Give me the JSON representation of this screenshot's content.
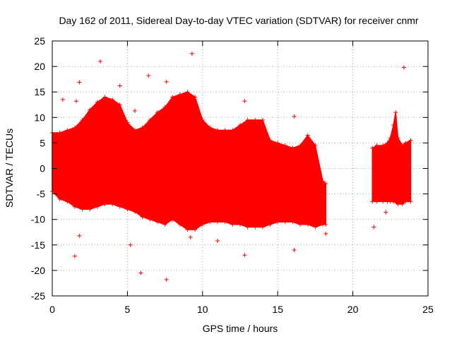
{
  "chart_data": {
    "type": "scatter",
    "title": "Day 162 of 2011, Sidereal Day-to-day VTEC variation (SDTVAR) for receiver cnmr",
    "xlabel": "GPS time / hours",
    "ylabel": "SDTVAR / TECUs",
    "xlim": [
      0,
      25
    ],
    "ylim": [
      -25,
      25
    ],
    "xticks": [
      "0",
      "5",
      "10",
      "15",
      "20",
      "25"
    ],
    "yticks": [
      "25",
      "20",
      "15",
      "10",
      "5",
      "0",
      "-5",
      "-10",
      "-15",
      "-20",
      "-25"
    ],
    "grid": true,
    "marker": "+",
    "color": "#ff0000",
    "series": [
      {
        "name": "SDTVAR",
        "upper_envelope": [
          [
            0.0,
            7.0
          ],
          [
            0.5,
            7.0
          ],
          [
            1.0,
            7.5
          ],
          [
            1.5,
            8.0
          ],
          [
            2.0,
            9.5
          ],
          [
            2.5,
            11.5
          ],
          [
            3.0,
            13.0
          ],
          [
            3.5,
            14.0
          ],
          [
            4.0,
            13.5
          ],
          [
            4.5,
            12.5
          ],
          [
            5.0,
            9.0
          ],
          [
            5.5,
            7.5
          ],
          [
            6.0,
            8.0
          ],
          [
            6.5,
            9.5
          ],
          [
            7.0,
            11.0
          ],
          [
            7.5,
            12.0
          ],
          [
            8.0,
            14.0
          ],
          [
            8.5,
            14.5
          ],
          [
            9.0,
            15.0
          ],
          [
            9.5,
            14.0
          ],
          [
            10.0,
            9.5
          ],
          [
            10.5,
            8.0
          ],
          [
            11.0,
            7.5
          ],
          [
            11.5,
            7.5
          ],
          [
            12.0,
            7.5
          ],
          [
            12.5,
            8.5
          ],
          [
            13.0,
            9.5
          ],
          [
            13.5,
            9.5
          ],
          [
            14.0,
            9.5
          ],
          [
            14.5,
            5.5
          ],
          [
            15.0,
            5.0
          ],
          [
            15.5,
            4.5
          ],
          [
            16.0,
            4.0
          ],
          [
            16.5,
            4.5
          ],
          [
            17.0,
            6.5
          ],
          [
            17.5,
            4.5
          ],
          [
            18.0,
            -2.5
          ],
          [
            18.2,
            -3.0
          ]
        ],
        "lower_envelope": [
          [
            0.0,
            -4.5
          ],
          [
            0.5,
            -6.0
          ],
          [
            1.0,
            -6.5
          ],
          [
            1.5,
            -7.5
          ],
          [
            2.0,
            -8.0
          ],
          [
            2.5,
            -8.0
          ],
          [
            3.0,
            -7.5
          ],
          [
            3.5,
            -7.0
          ],
          [
            4.0,
            -7.0
          ],
          [
            4.5,
            -7.5
          ],
          [
            5.0,
            -8.0
          ],
          [
            5.5,
            -8.5
          ],
          [
            6.0,
            -9.5
          ],
          [
            6.5,
            -10.0
          ],
          [
            7.0,
            -10.5
          ],
          [
            7.5,
            -11.0
          ],
          [
            8.0,
            -10.0
          ],
          [
            8.5,
            -11.0
          ],
          [
            9.0,
            -12.0
          ],
          [
            9.5,
            -12.0
          ],
          [
            10.0,
            -11.0
          ],
          [
            10.5,
            -10.5
          ],
          [
            11.0,
            -10.5
          ],
          [
            11.5,
            -10.5
          ],
          [
            12.0,
            -11.0
          ],
          [
            12.5,
            -11.0
          ],
          [
            13.0,
            -11.5
          ],
          [
            13.5,
            -11.5
          ],
          [
            14.0,
            -11.5
          ],
          [
            14.5,
            -11.0
          ],
          [
            15.0,
            -10.5
          ],
          [
            15.5,
            -10.5
          ],
          [
            16.0,
            -10.5
          ],
          [
            16.5,
            -11.0
          ],
          [
            17.0,
            -11.0
          ],
          [
            17.5,
            -11.5
          ],
          [
            18.0,
            -11.0
          ],
          [
            18.2,
            -11.0
          ]
        ],
        "upper_envelope_2": [
          [
            21.3,
            4.0
          ],
          [
            21.6,
            4.5
          ],
          [
            22.0,
            4.5
          ],
          [
            22.3,
            5.0
          ],
          [
            22.5,
            6.0
          ],
          [
            22.7,
            8.5
          ],
          [
            22.85,
            11.0
          ],
          [
            23.0,
            6.0
          ],
          [
            23.3,
            4.5
          ],
          [
            23.5,
            5.0
          ],
          [
            23.85,
            5.5
          ]
        ],
        "lower_envelope_2": [
          [
            21.3,
            -6.5
          ],
          [
            21.6,
            -6.5
          ],
          [
            22.0,
            -6.5
          ],
          [
            22.3,
            -6.5
          ],
          [
            22.5,
            -6.5
          ],
          [
            22.7,
            -6.5
          ],
          [
            23.0,
            -7.0
          ],
          [
            23.3,
            -7.0
          ],
          [
            23.5,
            -6.5
          ],
          [
            23.85,
            -6.5
          ]
        ],
        "outliers": [
          [
            3.2,
            21.0
          ],
          [
            9.3,
            22.5
          ],
          [
            23.4,
            19.8
          ],
          [
            1.8,
            16.9
          ],
          [
            4.5,
            16.2
          ],
          [
            6.4,
            18.2
          ],
          [
            0.7,
            13.5
          ],
          [
            1.6,
            13.2
          ],
          [
            12.8,
            13.2
          ],
          [
            16.1,
            10.2
          ],
          [
            7.6,
            17.0
          ],
          [
            5.5,
            11.3
          ],
          [
            1.5,
            -17.2
          ],
          [
            5.9,
            -20.5
          ],
          [
            7.6,
            -21.8
          ],
          [
            5.2,
            -15.0
          ],
          [
            12.8,
            -17.0
          ],
          [
            16.1,
            -16.0
          ],
          [
            1.8,
            -13.2
          ],
          [
            18.2,
            -12.8
          ],
          [
            21.4,
            -11.5
          ],
          [
            22.2,
            -8.6
          ],
          [
            11.0,
            -14.2
          ],
          [
            9.2,
            -13.5
          ]
        ]
      }
    ]
  }
}
